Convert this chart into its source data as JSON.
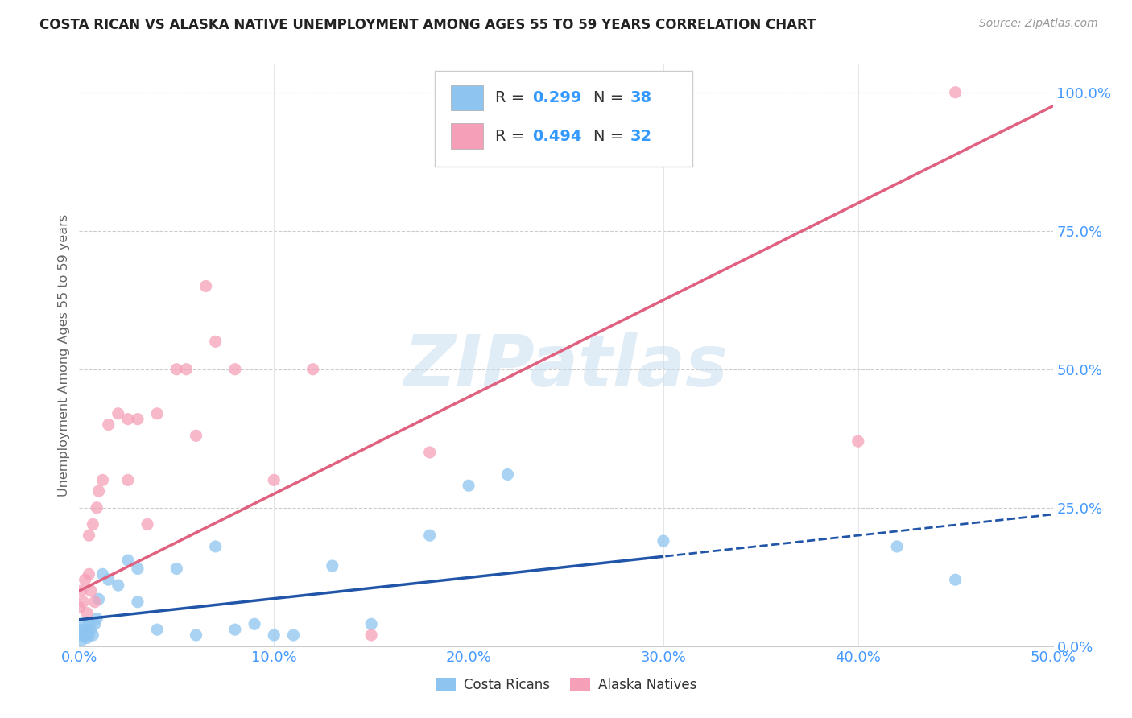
{
  "title": "COSTA RICAN VS ALASKA NATIVE UNEMPLOYMENT AMONG AGES 55 TO 59 YEARS CORRELATION CHART",
  "source": "Source: ZipAtlas.com",
  "ylabel": "Unemployment Among Ages 55 to 59 years",
  "xlim": [
    0.0,
    0.5
  ],
  "ylim": [
    0.0,
    1.05
  ],
  "xticks": [
    0.0,
    0.1,
    0.2,
    0.3,
    0.4,
    0.5
  ],
  "xticklabels": [
    "0.0%",
    "10.0%",
    "20.0%",
    "30.0%",
    "40.0%",
    "50.0%"
  ],
  "yticks_right": [
    0.0,
    0.25,
    0.5,
    0.75,
    1.0
  ],
  "yticklabels_right": [
    "0.0%",
    "25.0%",
    "50.0%",
    "75.0%",
    "100.0%"
  ],
  "costa_rican_color": "#8EC5F0",
  "alaska_native_color": "#F5A0B8",
  "costa_rican_line_color": "#2155A8",
  "alaska_native_line_color": "#E06080",
  "tick_color": "#4499FF",
  "legend_text_color": "#333333",
  "legend_val_color": "#3399FF",
  "watermark": "ZIPatlas",
  "background_color": "#FFFFFF",
  "grid_color": "#CCCCCC",
  "title_color": "#222222",
  "source_color": "#999999",
  "cr_x": [
    0.0,
    0.001,
    0.001,
    0.002,
    0.002,
    0.003,
    0.003,
    0.004,
    0.004,
    0.005,
    0.005,
    0.006,
    0.007,
    0.008,
    0.009,
    0.01,
    0.012,
    0.015,
    0.02,
    0.025,
    0.03,
    0.03,
    0.04,
    0.05,
    0.06,
    0.07,
    0.08,
    0.09,
    0.1,
    0.11,
    0.13,
    0.15,
    0.18,
    0.2,
    0.22,
    0.3,
    0.42,
    0.45
  ],
  "cr_y": [
    0.02,
    0.01,
    0.03,
    0.02,
    0.04,
    0.02,
    0.03,
    0.015,
    0.025,
    0.02,
    0.04,
    0.03,
    0.02,
    0.04,
    0.05,
    0.085,
    0.13,
    0.12,
    0.11,
    0.155,
    0.14,
    0.08,
    0.03,
    0.14,
    0.02,
    0.18,
    0.03,
    0.04,
    0.02,
    0.02,
    0.145,
    0.04,
    0.2,
    0.29,
    0.31,
    0.19,
    0.18,
    0.12
  ],
  "an_x": [
    0.0,
    0.001,
    0.002,
    0.003,
    0.004,
    0.005,
    0.005,
    0.006,
    0.007,
    0.008,
    0.009,
    0.01,
    0.012,
    0.015,
    0.02,
    0.025,
    0.025,
    0.03,
    0.035,
    0.04,
    0.05,
    0.055,
    0.06,
    0.065,
    0.07,
    0.08,
    0.1,
    0.12,
    0.15,
    0.18,
    0.4,
    0.45
  ],
  "an_y": [
    0.07,
    0.1,
    0.08,
    0.12,
    0.06,
    0.13,
    0.2,
    0.1,
    0.22,
    0.08,
    0.25,
    0.28,
    0.3,
    0.4,
    0.42,
    0.41,
    0.3,
    0.41,
    0.22,
    0.42,
    0.5,
    0.5,
    0.38,
    0.65,
    0.55,
    0.5,
    0.3,
    0.5,
    0.02,
    0.35,
    0.37,
    1.0
  ],
  "cr_line_intercept": 0.048,
  "cr_line_slope": 0.38,
  "an_line_intercept": 0.1,
  "an_line_slope": 1.75
}
